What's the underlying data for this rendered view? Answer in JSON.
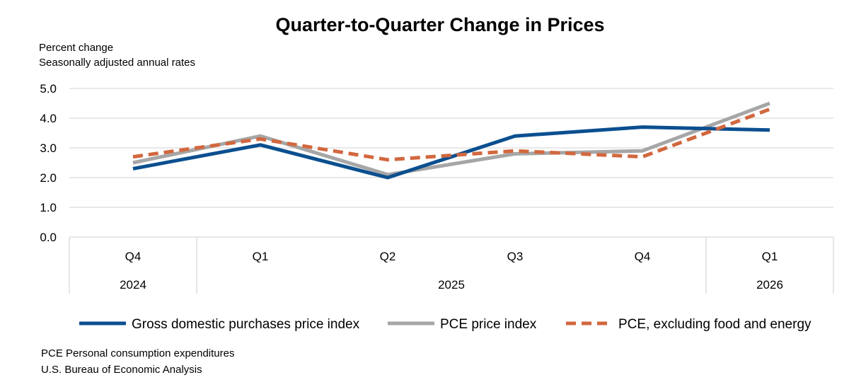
{
  "chart_data": {
    "type": "line",
    "title": "Quarter-to-Quarter Change in Prices",
    "subtitle_lines": [
      "Percent change",
      "Seasonally adjusted annual rates"
    ],
    "ylim": [
      0,
      5
    ],
    "yticks": [
      "0.0",
      "1.0",
      "2.0",
      "3.0",
      "4.0",
      "5.0"
    ],
    "grid": true,
    "categories": [
      "Q4",
      "Q1",
      "Q2",
      "Q3",
      "Q4",
      "Q1"
    ],
    "year_groups": [
      {
        "label": "2024",
        "span": 1
      },
      {
        "label": "2025",
        "span": 4
      },
      {
        "label": "2026",
        "span": 1
      }
    ],
    "series": [
      {
        "name": "Gross domestic purchases price index",
        "color": "#0b4f8f",
        "style": "solid",
        "values": [
          2.3,
          3.1,
          2.0,
          3.4,
          3.7,
          3.6
        ]
      },
      {
        "name": "PCE price index",
        "color": "#a6a6a6",
        "style": "solid",
        "values": [
          2.5,
          3.4,
          2.1,
          2.8,
          2.9,
          4.5
        ]
      },
      {
        "name": "PCE, excluding food and energy",
        "color": "#d2673e",
        "style": "dashed",
        "values": [
          2.7,
          3.3,
          2.6,
          2.9,
          2.7,
          4.3
        ]
      }
    ],
    "legend_position": "bottom"
  },
  "footnotes": [
    "PCE Personal consumption expenditures",
    "U.S. Bureau of Economic Analysis"
  ]
}
